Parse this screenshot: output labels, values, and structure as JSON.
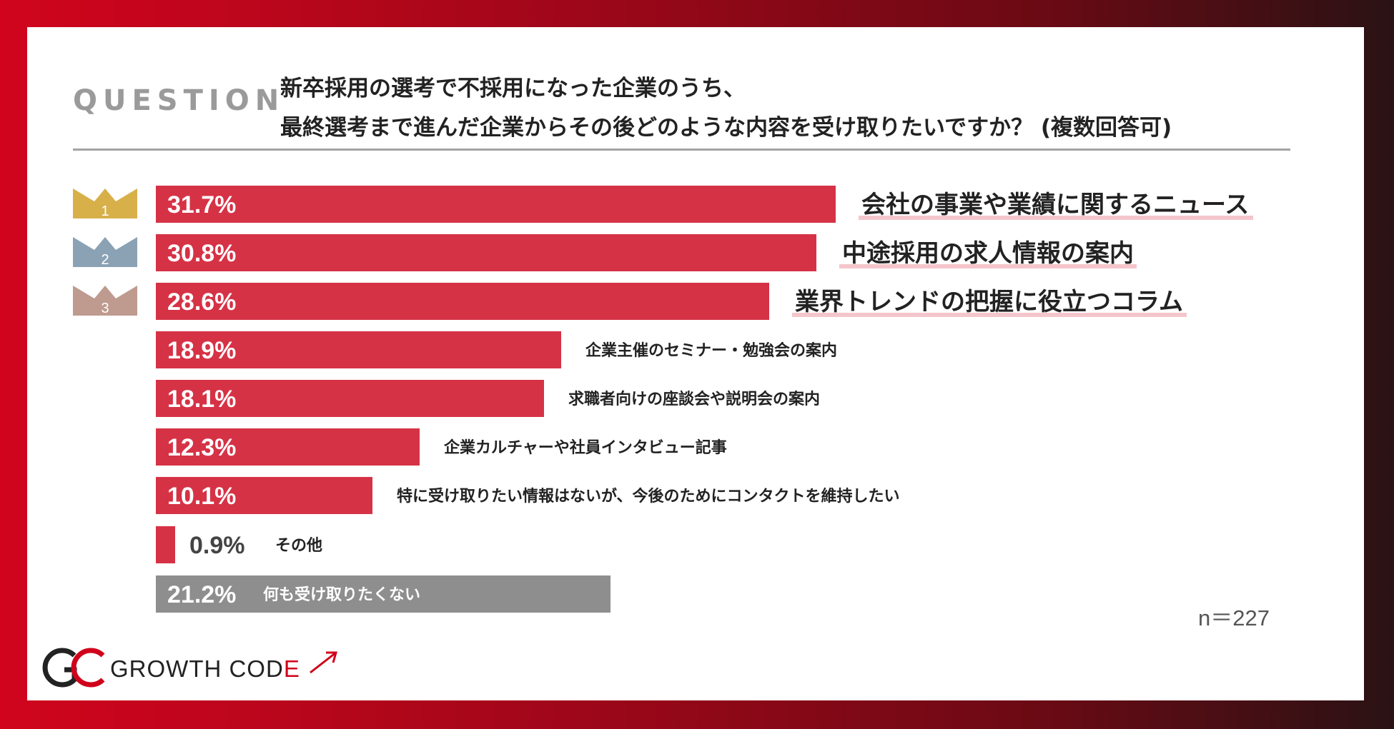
{
  "question": {
    "label": "QUESTION",
    "line1": "新卒採用の選考で不採用になった企業のうち、",
    "line2": "最終選考まで進んだ企業からその後どのような内容を受け取りたいですか？ (複数回答可)"
  },
  "sample_size": "n＝227",
  "logo": {
    "text_main": "GROWTH COD",
    "text_accent": "E"
  },
  "colors": {
    "bar_primary": "#d63246",
    "bar_none": "#8e8e8e",
    "rank1": "#d8b04a",
    "rank2": "#8aa2b4",
    "rank3": "#bf9a8f",
    "highlight_underline": "#f4c6cc",
    "brand_red": "#d0021b"
  },
  "chart_data": {
    "type": "bar",
    "orientation": "horizontal",
    "unit": "%",
    "categories": [
      "会社の事業や業績に関するニュース",
      "中途採用の求人情報の案内",
      "業界トレンドの把握に役立つコラム",
      "企業主催のセミナー・勉強会の案内",
      "求職者向けの座談会や説明会の案内",
      "企業カルチャーや社員インタビュー記事",
      "特に受け取りたい情報はないが、今後のためにコンタクトを維持したい",
      "その他",
      "何も受け取りたくない"
    ],
    "values": [
      31.7,
      30.8,
      28.6,
      18.9,
      18.1,
      12.3,
      10.1,
      0.9,
      21.2
    ],
    "value_labels": [
      "31.7%",
      "30.8%",
      "28.6%",
      "18.9%",
      "18.1%",
      "12.3%",
      "10.1%",
      "0.9%",
      "21.2%"
    ],
    "ranks": [
      "1",
      "2",
      "3"
    ],
    "highlight_top": 3,
    "none_category_index": 8,
    "xlim": [
      0,
      31.7
    ],
    "grid": false,
    "legend": "none"
  }
}
